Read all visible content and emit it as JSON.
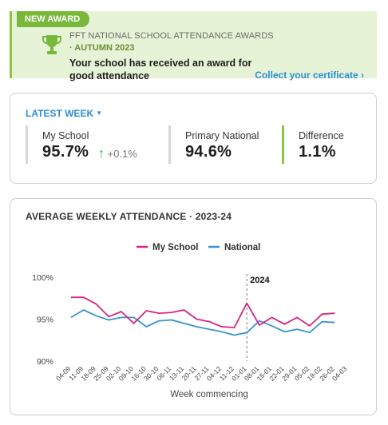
{
  "award": {
    "tag": "NEW AWARD",
    "title": "FFT NATIONAL SCHOOL ATTENDANCE AWARDS",
    "subtitle": "· AUTUMN 2023",
    "message": "Your school has received an award for good attendance",
    "link": "Collect your certificate ›",
    "icon": "trophy-icon"
  },
  "latest_week": {
    "button_label": "LATEST WEEK",
    "stats": {
      "my_school": {
        "label": "My School",
        "value": "95.7%",
        "change": "+0.1%"
      },
      "primary_national": {
        "label": "Primary National",
        "value": "94.6%"
      },
      "difference": {
        "label": "Difference",
        "value": "1.1%"
      }
    }
  },
  "chart_card": {
    "title": "AVERAGE WEEKLY ATTENDANCE · 2023-24"
  },
  "colors": {
    "my_school": "#d6257f",
    "national": "#3a92d4",
    "accent_green": "#8cc63f",
    "link_blue": "#2b8fd6"
  },
  "chart_data": {
    "type": "line",
    "title": "AVERAGE WEEKLY ATTENDANCE · 2023-24",
    "xlabel": "Week commencing",
    "ylabel": "",
    "ylim": [
      90,
      100
    ],
    "yticks": [
      90,
      95,
      100
    ],
    "ytick_labels": [
      "90%",
      "95%",
      "100%"
    ],
    "legend": "top-center",
    "grid": false,
    "categories": [
      "04-09",
      "11-09",
      "18-09",
      "25-09",
      "02-10",
      "09-10",
      "16-10",
      "30-10",
      "06-11",
      "13-11",
      "20-11",
      "27-11",
      "04-12",
      "11-12",
      "01-01",
      "08-01",
      "15-01",
      "22-01",
      "29-01",
      "05-02",
      "19-02",
      "26-02",
      "04-03"
    ],
    "annotation": {
      "label": "2024",
      "at_category": "01-01"
    },
    "series": [
      {
        "name": "My School",
        "color": "#d6257f",
        "values": [
          97.6,
          97.6,
          96.8,
          95.3,
          95.9,
          94.5,
          96.0,
          95.7,
          95.8,
          96.1,
          95.0,
          94.7,
          94.1,
          94.0,
          96.9,
          94.3,
          95.2,
          94.4,
          95.2,
          94.2,
          95.6,
          95.7,
          null
        ]
      },
      {
        "name": "National",
        "color": "#3a92d4",
        "values": [
          95.2,
          96.1,
          95.4,
          94.9,
          95.2,
          95.2,
          94.1,
          94.8,
          94.9,
          94.5,
          94.1,
          93.8,
          93.5,
          93.1,
          93.4,
          94.8,
          94.2,
          93.5,
          93.8,
          93.4,
          94.7,
          94.6,
          null
        ]
      }
    ]
  }
}
